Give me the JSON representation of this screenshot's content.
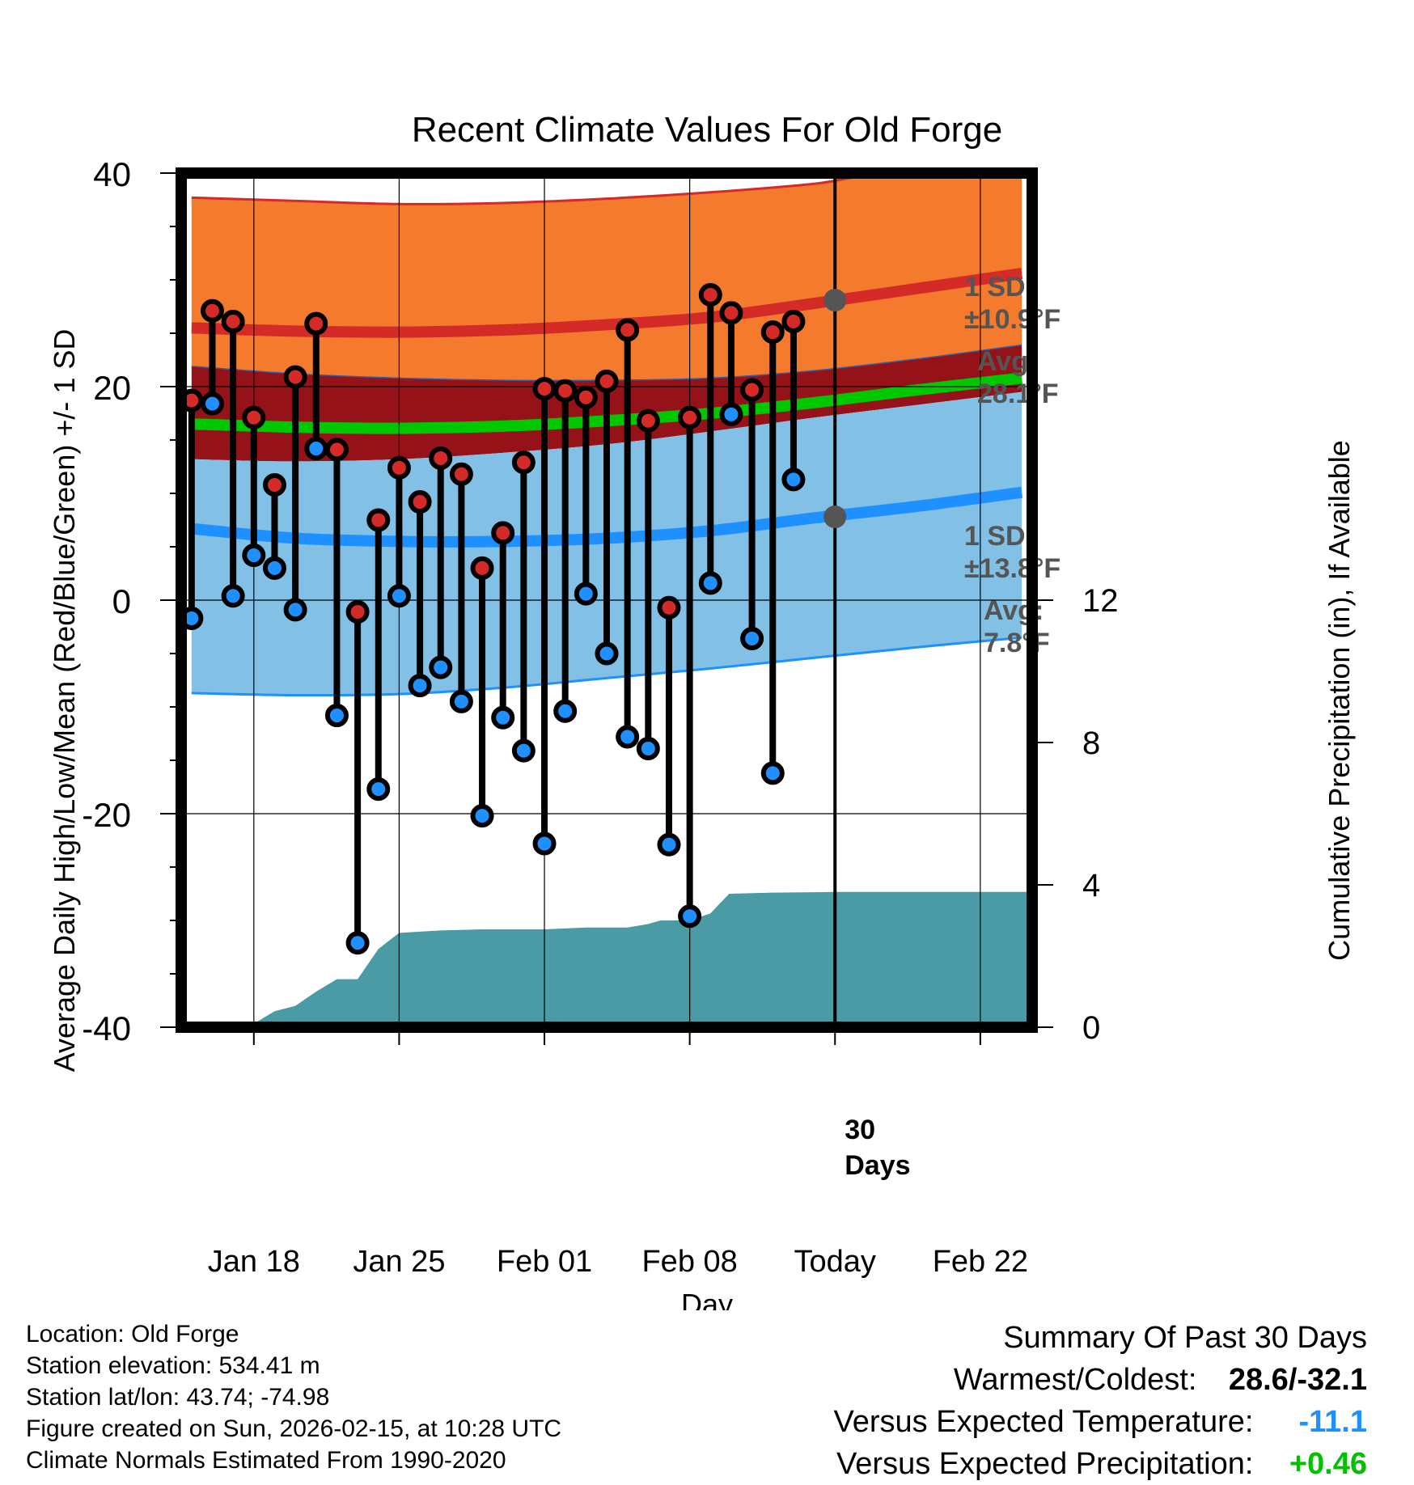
{
  "chart_data": {
    "type": "line",
    "title": "Recent Climate Values For Old Forge",
    "xlabel": "Day",
    "ylabel": "Average Daily High/Low/Mean (Red/Blue/Green) +/- 1 SD",
    "y2label": "Cumulative Precipitation (in), If Available",
    "ylim": [
      -40,
      40
    ],
    "y2lim": [
      0,
      24
    ],
    "yticks": [
      "40",
      "20",
      "0",
      "-20",
      "-40"
    ],
    "y2ticks": [
      "0",
      "4",
      "8",
      "12"
    ],
    "xlim": [
      -0.5,
      40.5
    ],
    "xticks": [
      {
        "day": 3,
        "label": "Jan 18"
      },
      {
        "day": 10,
        "label": "Jan 25"
      },
      {
        "day": 17,
        "label": "Feb 01"
      },
      {
        "day": 24,
        "label": "Feb 08"
      },
      {
        "day": 31,
        "label": "Today"
      },
      {
        "day": 38,
        "label": "Feb 22"
      }
    ],
    "today_day": 31,
    "days_label": [
      "30",
      "Days"
    ],
    "normal_high": [
      [
        0,
        25.5
      ],
      [
        5,
        25.2
      ],
      [
        10,
        25.1
      ],
      [
        15,
        25.3
      ],
      [
        20,
        25.8
      ],
      [
        25,
        26.5
      ],
      [
        30,
        27.8
      ],
      [
        35,
        29.2
      ],
      [
        40,
        30.6
      ]
    ],
    "normal_high_sd_upper": [
      [
        0,
        37.7
      ],
      [
        5,
        37.4
      ],
      [
        10,
        37.1
      ],
      [
        15,
        37.2
      ],
      [
        20,
        37.6
      ],
      [
        25,
        38.2
      ],
      [
        30,
        39.0
      ],
      [
        33,
        39.8
      ],
      [
        40,
        40.2
      ]
    ],
    "normal_high_sd_lower": [
      [
        0,
        21.9
      ],
      [
        5,
        21.2
      ],
      [
        10,
        20.8
      ],
      [
        15,
        20.6
      ],
      [
        20,
        20.6
      ],
      [
        25,
        20.8
      ],
      [
        30,
        21.5
      ],
      [
        35,
        22.6
      ],
      [
        40,
        23.9
      ]
    ],
    "normal_mean": [
      [
        0,
        16.5
      ],
      [
        5,
        16.2
      ],
      [
        10,
        16.1
      ],
      [
        15,
        16.3
      ],
      [
        20,
        16.8
      ],
      [
        25,
        17.5
      ],
      [
        30,
        18.5
      ],
      [
        35,
        19.7
      ],
      [
        40,
        20.8
      ]
    ],
    "normal_low": [
      [
        0,
        6.7
      ],
      [
        5,
        5.8
      ],
      [
        10,
        5.5
      ],
      [
        15,
        5.5
      ],
      [
        20,
        5.8
      ],
      [
        25,
        6.5
      ],
      [
        30,
        7.7
      ],
      [
        35,
        8.8
      ],
      [
        40,
        10.1
      ]
    ],
    "normal_low_sd_upper": [
      [
        0,
        13.2
      ],
      [
        5,
        13.0
      ],
      [
        10,
        13.2
      ],
      [
        15,
        13.8
      ],
      [
        20,
        14.6
      ],
      [
        25,
        15.8
      ],
      [
        30,
        17.1
      ],
      [
        35,
        18.3
      ],
      [
        40,
        19.5
      ]
    ],
    "normal_low_sd_lower": [
      [
        0,
        -8.7
      ],
      [
        5,
        -8.9
      ],
      [
        10,
        -8.8
      ],
      [
        15,
        -8.2
      ],
      [
        20,
        -7.3
      ],
      [
        25,
        -6.4
      ],
      [
        30,
        -5.4
      ],
      [
        35,
        -4.4
      ],
      [
        40,
        -3.5
      ]
    ],
    "daily": [
      {
        "day": 0,
        "high": 18.7,
        "low": -1.7
      },
      {
        "day": 1,
        "high": 27.1,
        "low": 18.4
      },
      {
        "day": 2,
        "high": 26.1,
        "low": 0.4
      },
      {
        "day": 3,
        "high": 17.1,
        "low": 4.2
      },
      {
        "day": 4,
        "high": 10.8,
        "low": 3.0
      },
      {
        "day": 5,
        "high": 20.9,
        "low": -0.9
      },
      {
        "day": 6,
        "high": 25.9,
        "low": 14.2
      },
      {
        "day": 7,
        "high": 14.1,
        "low": -10.8
      },
      {
        "day": 8,
        "high": -1.1,
        "low": -32.1
      },
      {
        "day": 9,
        "high": 7.5,
        "low": -17.7
      },
      {
        "day": 10,
        "high": 12.4,
        "low": 0.4
      },
      {
        "day": 11,
        "high": 9.2,
        "low": -8.0
      },
      {
        "day": 12,
        "high": 13.3,
        "low": -6.3
      },
      {
        "day": 13,
        "high": 11.8,
        "low": -9.5
      },
      {
        "day": 14,
        "high": 3.0,
        "low": -20.2
      },
      {
        "day": 15,
        "high": 6.3,
        "low": -11.0
      },
      {
        "day": 16,
        "high": 12.9,
        "low": -14.1
      },
      {
        "day": 17,
        "high": 19.8,
        "low": -22.8
      },
      {
        "day": 18,
        "high": 19.6,
        "low": -10.4
      },
      {
        "day": 19,
        "high": 19.0,
        "low": 0.6
      },
      {
        "day": 20,
        "high": 20.5,
        "low": -5.0
      },
      {
        "day": 21,
        "high": 25.3,
        "low": -12.8
      },
      {
        "day": 22,
        "high": 16.8,
        "low": -13.9
      },
      {
        "day": 23,
        "high": -0.7,
        "low": -22.9
      },
      {
        "day": 24,
        "high": 17.1,
        "low": -29.6
      },
      {
        "day": 25,
        "high": 28.6,
        "low": 1.6
      },
      {
        "day": 26,
        "high": 26.9,
        "low": 17.4
      },
      {
        "day": 27,
        "high": 19.7,
        "low": -3.6
      },
      {
        "day": 28,
        "high": 25.1,
        "low": -16.2
      },
      {
        "day": 29,
        "high": 26.1,
        "low": 11.3
      }
    ],
    "precip_cumulative": [
      [
        2.6,
        0.0
      ],
      [
        3.0,
        0.1
      ],
      [
        4.0,
        0.45
      ],
      [
        5.0,
        0.6
      ],
      [
        6.0,
        1.0
      ],
      [
        7.0,
        1.35
      ],
      [
        8.0,
        1.35
      ],
      [
        9.0,
        2.2
      ],
      [
        10.0,
        2.65
      ],
      [
        12.0,
        2.72
      ],
      [
        14.0,
        2.75
      ],
      [
        17.0,
        2.75
      ],
      [
        19.0,
        2.8
      ],
      [
        21.0,
        2.8
      ],
      [
        22.0,
        2.9
      ],
      [
        22.6,
        3.0
      ],
      [
        24.0,
        3.0
      ],
      [
        25.0,
        3.2
      ],
      [
        25.9,
        3.75
      ],
      [
        28.0,
        3.78
      ],
      [
        31.0,
        3.8
      ],
      [
        40.5,
        3.8
      ]
    ],
    "annotations": {
      "high_sd": [
        "1 SD:",
        "±10.9°F"
      ],
      "high_avg": [
        "Avg:",
        "28.1°F"
      ],
      "low_sd": [
        "1 SD:",
        "±13.8°F"
      ],
      "low_avg": [
        "Avg:",
        "7.8°F"
      ],
      "high_avg_value": 28.1,
      "low_avg_value": 7.8
    },
    "colors": {
      "high_band": "#f47a2e",
      "high_line": "#d42a28",
      "mean_band": "#951318",
      "mean_line": "#00c800",
      "low_band": "#82c0e6",
      "low_line": "#1e90ff",
      "precip": "#4a9ba5",
      "annotation": "#555555",
      "high_marker": "#d42a28",
      "low_marker": "#1e90ff"
    }
  },
  "footer": {
    "location": "Location: Old Forge",
    "elevation": "Station elevation: 534.41 m",
    "latlon": "Station lat/lon: 43.74; -74.98",
    "created": "Figure created on Sun, 2026-02-15, at 10:28 UTC",
    "normals": "Climate Normals Estimated From 1990-2020"
  },
  "summary": {
    "heading": "Summary Of Past 30 Days",
    "warmest_coldest_label": "Warmest/Coldest:",
    "warmest_coldest_value": "28.6/-32.1",
    "temp_label": "Versus Expected Temperature:",
    "temp_value": "-11.1",
    "temp_color": "#1e90ff",
    "precip_label": "Versus Expected Precipitation:",
    "precip_value": "+0.46",
    "precip_color": "#00c000"
  }
}
